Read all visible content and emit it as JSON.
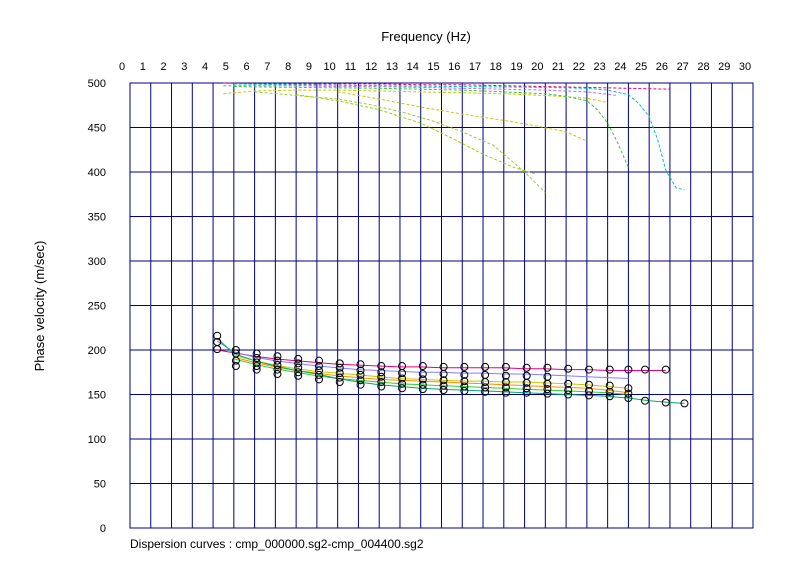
{
  "chart_data": {
    "type": "scatter",
    "xlabel": "Frequency (Hz)",
    "ylabel": "Phase velocity (m/sec)",
    "caption": "Dispersion curves : cmp_000000.sg2-cmp_004400.sg2",
    "xlim": [
      0,
      30
    ],
    "ylim": [
      0,
      500
    ],
    "x_ticks": [
      0,
      1,
      2,
      3,
      4,
      5,
      6,
      7,
      8,
      9,
      10,
      11,
      12,
      13,
      14,
      15,
      16,
      17,
      18,
      19,
      20,
      21,
      22,
      23,
      24,
      25,
      26,
      27,
      28,
      29,
      30
    ],
    "y_ticks": [
      0,
      50,
      100,
      150,
      200,
      250,
      300,
      350,
      400,
      450,
      500
    ],
    "x_axis_position": "top",
    "grid": true,
    "colors": {
      "grid": "#000080",
      "frame": "#000080",
      "points": "#000000"
    },
    "picked_points": [
      {
        "x": 4.2,
        "y": 216
      },
      {
        "x": 4.2,
        "y": 209
      },
      {
        "x": 4.2,
        "y": 201
      },
      {
        "x": 5.1,
        "y": 200
      },
      {
        "x": 5.1,
        "y": 196
      },
      {
        "x": 5.1,
        "y": 188
      },
      {
        "x": 5.1,
        "y": 182
      },
      {
        "x": 6.1,
        "y": 196
      },
      {
        "x": 6.1,
        "y": 191
      },
      {
        "x": 6.1,
        "y": 186
      },
      {
        "x": 6.1,
        "y": 182
      },
      {
        "x": 6.1,
        "y": 178
      },
      {
        "x": 7.1,
        "y": 193
      },
      {
        "x": 7.1,
        "y": 188
      },
      {
        "x": 7.1,
        "y": 183
      },
      {
        "x": 7.1,
        "y": 178
      },
      {
        "x": 7.1,
        "y": 173
      },
      {
        "x": 8.1,
        "y": 190
      },
      {
        "x": 8.1,
        "y": 185
      },
      {
        "x": 8.1,
        "y": 180
      },
      {
        "x": 8.1,
        "y": 175
      },
      {
        "x": 8.1,
        "y": 171
      },
      {
        "x": 9.1,
        "y": 188
      },
      {
        "x": 9.1,
        "y": 182
      },
      {
        "x": 9.1,
        "y": 177
      },
      {
        "x": 9.1,
        "y": 172
      },
      {
        "x": 9.1,
        "y": 167
      },
      {
        "x": 10.1,
        "y": 185
      },
      {
        "x": 10.1,
        "y": 180
      },
      {
        "x": 10.1,
        "y": 174
      },
      {
        "x": 10.1,
        "y": 169
      },
      {
        "x": 10.1,
        "y": 164
      },
      {
        "x": 11.1,
        "y": 184
      },
      {
        "x": 11.1,
        "y": 177
      },
      {
        "x": 11.1,
        "y": 172
      },
      {
        "x": 11.1,
        "y": 166
      },
      {
        "x": 11.1,
        "y": 161
      },
      {
        "x": 12.1,
        "y": 182
      },
      {
        "x": 12.1,
        "y": 175
      },
      {
        "x": 12.1,
        "y": 170
      },
      {
        "x": 12.1,
        "y": 164
      },
      {
        "x": 12.1,
        "y": 159
      },
      {
        "x": 13.1,
        "y": 182
      },
      {
        "x": 13.1,
        "y": 174
      },
      {
        "x": 13.1,
        "y": 168
      },
      {
        "x": 13.1,
        "y": 162
      },
      {
        "x": 13.1,
        "y": 157
      },
      {
        "x": 14.1,
        "y": 182
      },
      {
        "x": 14.1,
        "y": 173
      },
      {
        "x": 14.1,
        "y": 167
      },
      {
        "x": 14.1,
        "y": 161
      },
      {
        "x": 14.1,
        "y": 156
      },
      {
        "x": 15.1,
        "y": 181
      },
      {
        "x": 15.1,
        "y": 173
      },
      {
        "x": 15.1,
        "y": 166
      },
      {
        "x": 15.1,
        "y": 160
      },
      {
        "x": 15.1,
        "y": 155
      },
      {
        "x": 16.1,
        "y": 181
      },
      {
        "x": 16.1,
        "y": 172
      },
      {
        "x": 16.1,
        "y": 165
      },
      {
        "x": 16.1,
        "y": 159
      },
      {
        "x": 16.1,
        "y": 154
      },
      {
        "x": 17.1,
        "y": 181
      },
      {
        "x": 17.1,
        "y": 172
      },
      {
        "x": 17.1,
        "y": 164
      },
      {
        "x": 17.1,
        "y": 158
      },
      {
        "x": 17.1,
        "y": 153
      },
      {
        "x": 18.1,
        "y": 181
      },
      {
        "x": 18.1,
        "y": 171
      },
      {
        "x": 18.1,
        "y": 164
      },
      {
        "x": 18.1,
        "y": 158
      },
      {
        "x": 18.1,
        "y": 152
      },
      {
        "x": 19.1,
        "y": 180
      },
      {
        "x": 19.1,
        "y": 171
      },
      {
        "x": 19.1,
        "y": 163
      },
      {
        "x": 19.1,
        "y": 157
      },
      {
        "x": 19.1,
        "y": 152
      },
      {
        "x": 20.1,
        "y": 180
      },
      {
        "x": 20.1,
        "y": 170
      },
      {
        "x": 20.1,
        "y": 162
      },
      {
        "x": 20.1,
        "y": 156
      },
      {
        "x": 20.1,
        "y": 151
      },
      {
        "x": 21.1,
        "y": 179
      },
      {
        "x": 21.1,
        "y": 162
      },
      {
        "x": 21.1,
        "y": 155
      },
      {
        "x": 21.1,
        "y": 150
      },
      {
        "x": 22.1,
        "y": 178
      },
      {
        "x": 22.1,
        "y": 161
      },
      {
        "x": 22.1,
        "y": 154
      },
      {
        "x": 22.1,
        "y": 149
      },
      {
        "x": 23.1,
        "y": 178
      },
      {
        "x": 23.1,
        "y": 160
      },
      {
        "x": 23.1,
        "y": 153
      },
      {
        "x": 23.1,
        "y": 148
      },
      {
        "x": 24.0,
        "y": 178
      },
      {
        "x": 24.0,
        "y": 157
      },
      {
        "x": 24.0,
        "y": 151
      },
      {
        "x": 24.0,
        "y": 146
      },
      {
        "x": 24.8,
        "y": 178
      },
      {
        "x": 24.8,
        "y": 143
      },
      {
        "x": 25.8,
        "y": 178
      },
      {
        "x": 25.8,
        "y": 141
      },
      {
        "x": 26.7,
        "y": 140
      }
    ],
    "series": [
      {
        "color": "#e6007e",
        "style": "solid",
        "x": [
          4.2,
          5,
          6,
          7,
          8,
          9,
          10,
          11,
          12,
          13,
          14,
          15,
          16,
          17,
          18,
          19,
          20,
          21,
          22,
          23,
          24,
          25,
          25.8
        ],
        "y": [
          200,
          197,
          193,
          190,
          188,
          186,
          184,
          183,
          182,
          181,
          181,
          180,
          180,
          180,
          180,
          179,
          179,
          178,
          178,
          177,
          177,
          177,
          177
        ]
      },
      {
        "color": "#8080ff",
        "style": "solid",
        "x": [
          4.2,
          5,
          6,
          7,
          8,
          9,
          10,
          11,
          12,
          13,
          14,
          15,
          16,
          17,
          18,
          19,
          20,
          21,
          22,
          23,
          24
        ],
        "y": [
          210,
          198,
          192,
          188,
          185,
          182,
          180,
          178,
          177,
          176,
          175,
          175,
          174,
          174,
          173,
          173,
          172,
          171,
          170,
          169,
          168
        ]
      },
      {
        "color": "#c8c800",
        "style": "solid",
        "x": [
          5,
          6,
          7,
          8,
          9,
          10,
          11,
          12,
          13,
          14,
          15,
          16,
          17,
          18,
          19,
          20,
          21,
          22,
          23,
          24
        ],
        "y": [
          194,
          188,
          183,
          179,
          176,
          174,
          172,
          170,
          168,
          167,
          166,
          165,
          165,
          164,
          164,
          163,
          162,
          161,
          159,
          157
        ]
      },
      {
        "color": "#ff8c00",
        "style": "solid",
        "x": [
          5,
          6,
          7,
          8,
          9,
          10,
          11,
          12,
          13,
          14,
          15,
          16,
          17,
          18,
          19,
          20,
          21,
          22,
          23,
          24
        ],
        "y": [
          192,
          186,
          181,
          177,
          174,
          171,
          169,
          167,
          166,
          165,
          164,
          163,
          162,
          161,
          160,
          159,
          158,
          157,
          155,
          152
        ]
      },
      {
        "color": "#32cd32",
        "style": "solid",
        "x": [
          5,
          6,
          7,
          8,
          9,
          10,
          11,
          12,
          13,
          14,
          15,
          16,
          17,
          18,
          19,
          20,
          21,
          22,
          23,
          24
        ],
        "y": [
          190,
          184,
          179,
          175,
          171,
          168,
          166,
          164,
          162,
          161,
          160,
          159,
          158,
          157,
          156,
          155,
          154,
          153,
          152,
          150
        ]
      },
      {
        "color": "#00a86b",
        "style": "solid",
        "x": [
          4.2,
          5,
          6,
          7,
          8,
          9,
          10,
          11,
          12,
          13,
          14,
          15,
          16,
          17,
          18,
          19,
          20,
          21,
          22,
          23,
          24,
          25,
          26,
          26.7
        ],
        "y": [
          213,
          196,
          188,
          182,
          177,
          173,
          168,
          164,
          161,
          159,
          157,
          156,
          155,
          154,
          153,
          152,
          151,
          150,
          149,
          148,
          146,
          143,
          141,
          140
        ]
      },
      {
        "color": "#e6007e",
        "style": "dashed",
        "x": [
          4.5,
          6,
          8,
          10,
          12,
          14,
          16,
          18,
          20,
          22,
          24,
          26
        ],
        "y": [
          500,
          499,
          499,
          499,
          499,
          498,
          498,
          497,
          496,
          495,
          494,
          493
        ]
      },
      {
        "color": "#b070ff",
        "style": "dashed",
        "x": [
          4.5,
          6,
          8,
          10,
          12,
          14,
          16,
          18,
          20,
          22,
          23.5
        ],
        "y": [
          497,
          497,
          497,
          496,
          496,
          495,
          494,
          493,
          492,
          490,
          486
        ]
      },
      {
        "color": "#c8c800",
        "style": "dashed",
        "x": [
          4.5,
          6,
          8,
          10,
          12,
          14,
          16,
          18,
          20,
          22,
          23
        ],
        "y": [
          488,
          491,
          492,
          492,
          491,
          490,
          489,
          488,
          486,
          483,
          478
        ]
      },
      {
        "color": "#00c0c0",
        "style": "dashed",
        "x": [
          5,
          8,
          12,
          16,
          20,
          22,
          23,
          24,
          24.5,
          25,
          25.4,
          25.8,
          26.3,
          26.7
        ],
        "y": [
          499,
          498,
          497,
          496,
          495,
          494,
          492,
          487,
          477,
          462,
          437,
          402,
          382,
          380
        ]
      },
      {
        "color": "#32cd32",
        "style": "dashed",
        "x": [
          5,
          8,
          12,
          16,
          18,
          20,
          21,
          22,
          22.5,
          23,
          23.5,
          24
        ],
        "y": [
          496,
          495,
          494,
          492,
          490,
          488,
          485,
          480,
          470,
          455,
          432,
          405
        ]
      },
      {
        "color": "#99cc33",
        "style": "dashed",
        "x": [
          6,
          8,
          10,
          11.5,
          13,
          14.5,
          16,
          17.5,
          19,
          20
        ],
        "y": [
          490,
          486,
          482,
          476,
          468,
          458,
          445,
          430,
          400,
          377
        ]
      },
      {
        "color": "#a0d000",
        "style": "dashed",
        "x": [
          8,
          10,
          12,
          14,
          15.5,
          17,
          18.5,
          19.5
        ],
        "y": [
          487,
          480,
          470,
          455,
          438,
          420,
          405,
          398
        ]
      },
      {
        "color": "#c8c800",
        "style": "dashed",
        "x": [
          10,
          12,
          14,
          16,
          18,
          19.5,
          21,
          22
        ],
        "y": [
          490,
          482,
          473,
          465,
          458,
          452,
          445,
          435
        ]
      }
    ]
  }
}
